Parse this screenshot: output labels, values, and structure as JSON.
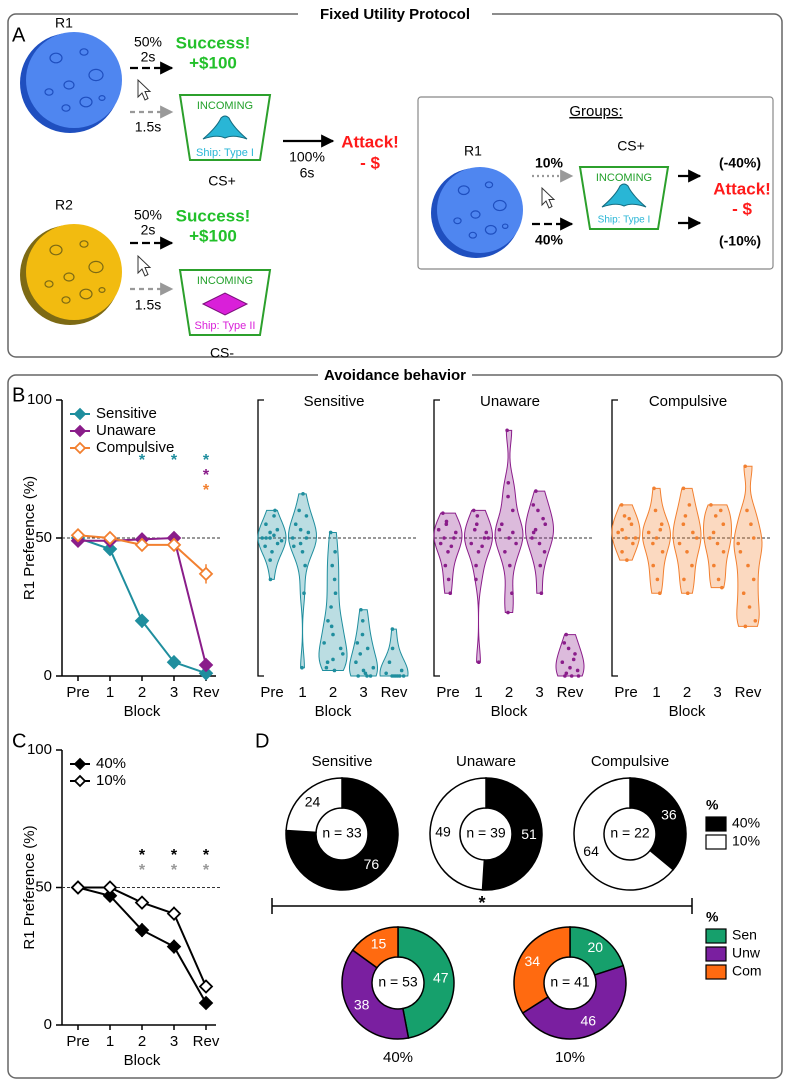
{
  "panel_a": {
    "label": "A",
    "title": "Fixed Utility Protocol",
    "r1": {
      "name": "R1",
      "prob": "50%",
      "delay": "2s",
      "alt_delay": "1.5s",
      "success": "Success!",
      "reward": "+$100",
      "cue": "INCOMING",
      "ship": "Ship: Type I",
      "cs": "CS+",
      "attack_prob": "100%",
      "attack_delay": "6s",
      "attack": "Attack!",
      "loss": "- $"
    },
    "r2": {
      "name": "R2",
      "prob": "50%",
      "delay": "2s",
      "alt_delay": "1.5s",
      "success": "Success!",
      "reward": "+$100",
      "cue": "INCOMING",
      "ship": "Ship: Type II",
      "cs": "CS-"
    },
    "groups": {
      "title": "Groups:",
      "name": "R1",
      "low_prob": "10%",
      "high_prob": "40%",
      "cs": "CS+",
      "cue": "INCOMING",
      "ship": "Ship: Type I",
      "high_loss": "(-40%)",
      "attack": "Attack!",
      "loss": "- $",
      "low_loss": "(-10%)"
    }
  },
  "panel_b": {
    "label": "B",
    "title": "Avoidance behavior"
  },
  "panel_c": {
    "label": "C"
  },
  "panel_d": {
    "label": "D",
    "significance": "*",
    "legends": [
      {
        "title": "%",
        "names": [
          "40%",
          "10%"
        ],
        "colors": [
          "#000000",
          "#ffffff"
        ]
      },
      {
        "title": "%",
        "names": [
          "Sen",
          "Unw",
          "Com"
        ],
        "colors": [
          "#16a06c",
          "#7a1fa0",
          "#ff6a10"
        ]
      }
    ]
  },
  "chart_data": [
    {
      "type": "line",
      "categories": [
        "Pre",
        "1",
        "2",
        "3",
        "Rev"
      ],
      "ylabel": "R1 Preference (%)",
      "xlabel": "Block",
      "ylim": [
        0,
        100
      ],
      "yticks": [
        0,
        50,
        100
      ],
      "hline": 50,
      "legend": "upper left",
      "series": [
        {
          "name": "Sensitive",
          "color": "#1f8e9e",
          "marker": "filled",
          "values": [
            50,
            46,
            20,
            5,
            1
          ],
          "errors": [
            1.5,
            2,
            2.5,
            1,
            0.8
          ]
        },
        {
          "name": "Unaware",
          "color": "#8a1d8a",
          "marker": "filled",
          "values": [
            49,
            49,
            49.5,
            50,
            4
          ],
          "errors": [
            1,
            1,
            1,
            1,
            1
          ]
        },
        {
          "name": "Compulsive",
          "color": "#f28030",
          "marker": "open",
          "values": [
            51,
            50,
            47.5,
            47.5,
            37
          ],
          "errors": [
            1.5,
            1,
            1,
            1,
            3.5
          ]
        }
      ],
      "annotations": [
        {
          "text": "*",
          "series": "Sensitive",
          "category": "2"
        },
        {
          "text": "*",
          "series": "Sensitive",
          "category": "3"
        },
        {
          "text": "*",
          "series": "Sensitive",
          "category": "Rev"
        },
        {
          "text": "*",
          "series": "Unaware",
          "category": "Rev"
        },
        {
          "text": "*",
          "series": "Compulsive",
          "category": "Rev"
        }
      ]
    },
    {
      "type": "violin",
      "title": "Sensitive",
      "xlabel": "Block",
      "color": "#1f8e9e",
      "ylim": [
        0,
        100
      ],
      "hline": 50,
      "categories": [
        "Pre",
        "1",
        "2",
        "3",
        "Rev"
      ],
      "values": [
        [
          50,
          52,
          48,
          55,
          45,
          60,
          50,
          51,
          49,
          42,
          58,
          35,
          50,
          53,
          47
        ],
        [
          50,
          48,
          52,
          55,
          45,
          40,
          60,
          66,
          30,
          3,
          50,
          47,
          53,
          58
        ],
        [
          52,
          40,
          30,
          20,
          15,
          10,
          5,
          2,
          8,
          25,
          35,
          12,
          18,
          45,
          3,
          6
        ],
        [
          24,
          15,
          10,
          5,
          2,
          0,
          0,
          1,
          3,
          8,
          0,
          12,
          20
        ],
        [
          17,
          0,
          0,
          1,
          0,
          2,
          5,
          0,
          0,
          10,
          0
        ]
      ]
    },
    {
      "type": "violin",
      "title": "Unaware",
      "xlabel": "Block",
      "color": "#8a1d8a",
      "ylim": [
        0,
        100
      ],
      "hline": 50,
      "categories": [
        "Pre",
        "1",
        "2",
        "3",
        "Rev"
      ],
      "values": [
        [
          59,
          55,
          50,
          48,
          45,
          52,
          40,
          35,
          30,
          50,
          47,
          53,
          56
        ],
        [
          60,
          55,
          50,
          48,
          45,
          52,
          40,
          5,
          50,
          53,
          47,
          35,
          58
        ],
        [
          89,
          70,
          60,
          55,
          50,
          48,
          45,
          40,
          30,
          23,
          52,
          53,
          65
        ],
        [
          67,
          60,
          55,
          50,
          48,
          45,
          52,
          40,
          30,
          53,
          57,
          62
        ],
        [
          15,
          10,
          8,
          5,
          3,
          2,
          0,
          0,
          0,
          1,
          6,
          12
        ]
      ]
    },
    {
      "type": "violin",
      "title": "Compulsive",
      "xlabel": "Block",
      "color": "#f28030",
      "ylim": [
        0,
        100
      ],
      "hline": 50,
      "categories": [
        "Pre",
        "1",
        "2",
        "3",
        "Rev"
      ],
      "values": [
        [
          62,
          58,
          55,
          52,
          50,
          48,
          45,
          42,
          50,
          53,
          57
        ],
        [
          68,
          60,
          55,
          52,
          50,
          45,
          40,
          35,
          30,
          48,
          53
        ],
        [
          68,
          58,
          52,
          48,
          45,
          40,
          35,
          30,
          50,
          55,
          62
        ],
        [
          62,
          58,
          55,
          50,
          48,
          45,
          40,
          35,
          32,
          52,
          60
        ],
        [
          76,
          60,
          50,
          45,
          40,
          35,
          30,
          25,
          20,
          18,
          55,
          48
        ]
      ]
    },
    {
      "type": "line",
      "categories": [
        "Pre",
        "1",
        "2",
        "3",
        "Rev"
      ],
      "ylabel": "R1 Preference (%)",
      "xlabel": "Block",
      "ylim": [
        0,
        100
      ],
      "yticks": [
        0,
        50,
        100
      ],
      "hline": 50,
      "legend": "upper left",
      "series": [
        {
          "name": "40%",
          "color": "#000000",
          "marker": "filled",
          "values": [
            50,
            47,
            34.5,
            28.5,
            8
          ],
          "errors": [
            1.5,
            1.5,
            2.5,
            2.5,
            2
          ]
        },
        {
          "name": "10%",
          "color": "#000000",
          "marker": "open",
          "values": [
            50,
            50,
            44.5,
            40.5,
            14
          ],
          "errors": [
            1,
            1,
            1.5,
            2.5,
            2
          ]
        }
      ],
      "annotations": [
        {
          "text": "*",
          "series": "40%",
          "category": "2",
          "color": "#000000"
        },
        {
          "text": "*",
          "series": "40%",
          "category": "3",
          "color": "#000000"
        },
        {
          "text": "*",
          "series": "40%",
          "category": "Rev",
          "color": "#000000"
        },
        {
          "text": "*",
          "series": "10%",
          "category": "2",
          "color": "#999999"
        },
        {
          "text": "*",
          "series": "10%",
          "category": "3",
          "color": "#999999"
        },
        {
          "text": "*",
          "series": "10%",
          "category": "Rev",
          "color": "#999999"
        }
      ]
    },
    {
      "type": "pie",
      "title": "Sensitive",
      "center": "n = 33",
      "values": [
        76,
        24
      ],
      "colors": [
        "#000000",
        "#ffffff"
      ]
    },
    {
      "type": "pie",
      "title": "Unaware",
      "center": "n = 39",
      "values": [
        51,
        49
      ],
      "colors": [
        "#000000",
        "#ffffff"
      ]
    },
    {
      "type": "pie",
      "title": "Compulsive",
      "center": "n = 22",
      "values": [
        36,
        64
      ],
      "colors": [
        "#000000",
        "#ffffff"
      ]
    },
    {
      "type": "pie",
      "label": "40%",
      "center": "n = 53",
      "values": [
        47,
        38,
        15
      ],
      "colors": [
        "#16a06c",
        "#7a1fa0",
        "#ff6a10"
      ]
    },
    {
      "type": "pie",
      "label": "10%",
      "center": "n = 41",
      "values": [
        20,
        46,
        34
      ],
      "colors": [
        "#16a06c",
        "#7a1fa0",
        "#ff6a10"
      ]
    }
  ]
}
